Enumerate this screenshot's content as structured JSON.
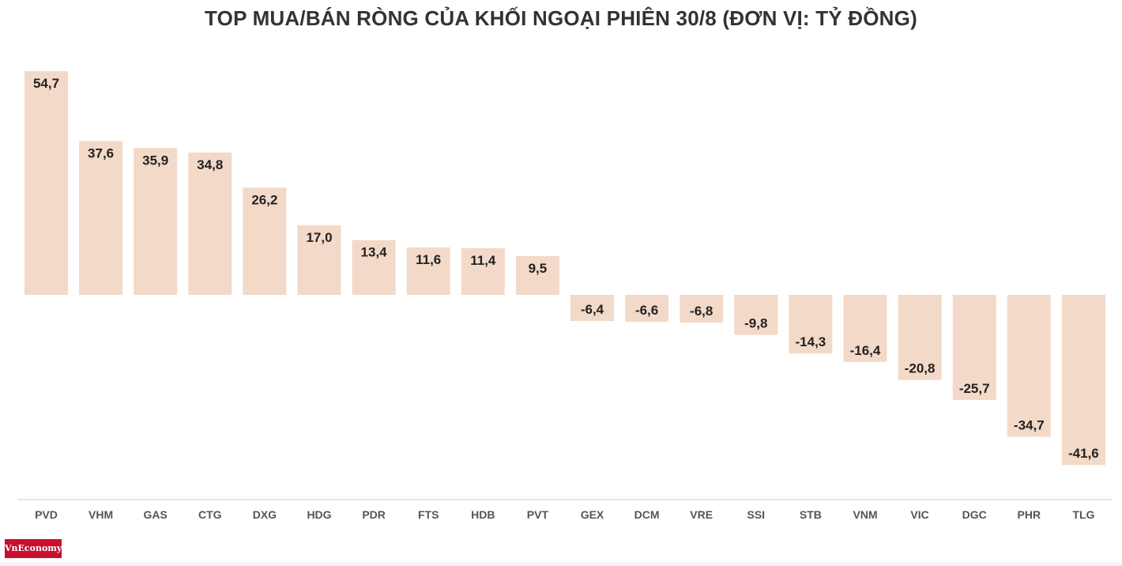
{
  "chart_data": {
    "type": "bar",
    "title": "TOP MUA/BÁN RÒNG CỦA KHỐI NGOẠI PHIÊN 30/8 (ĐƠN VỊ: TỶ ĐỒNG)",
    "categories": [
      "PVD",
      "VHM",
      "GAS",
      "CTG",
      "DXG",
      "HDG",
      "PDR",
      "FTS",
      "HDB",
      "PVT",
      "GEX",
      "DCM",
      "VRE",
      "SSI",
      "STB",
      "VNM",
      "VIC",
      "DGC",
      "PHR",
      "TLG"
    ],
    "values": [
      54.7,
      37.6,
      35.9,
      34.8,
      26.2,
      17.0,
      13.4,
      11.6,
      11.4,
      9.5,
      -6.4,
      -6.6,
      -6.8,
      -9.8,
      -14.3,
      -16.4,
      -20.8,
      -25.7,
      -34.7,
      -41.6
    ],
    "value_labels": [
      "54,7",
      "37,6",
      "35,9",
      "34,8",
      "26,2",
      "17,0",
      "13,4",
      "11,6",
      "11,4",
      "9,5",
      "-6,4",
      "-6,6",
      "-6,8",
      "-9,8",
      "-14,3",
      "-16,4",
      "-20,8",
      "-25,7",
      "-34,7",
      "-41,6"
    ],
    "bar_color": "#f3d9c8",
    "axis_color": "#cccccc",
    "label_color": "#222222",
    "category_color": "#555555",
    "grid": false,
    "legend": "none"
  },
  "brand": {
    "logo_text": "VnEconomy",
    "logo_color": "#c8102e"
  }
}
